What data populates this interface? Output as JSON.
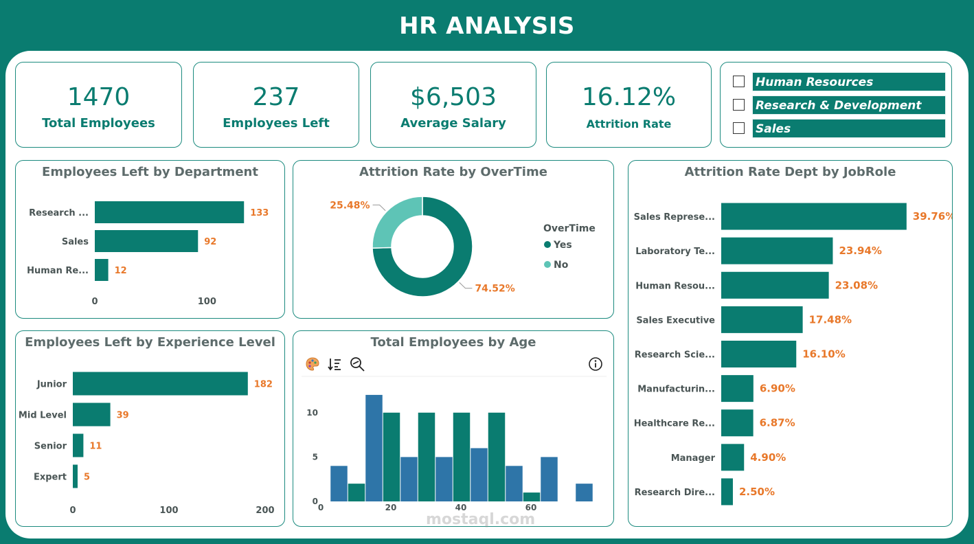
{
  "header": {
    "title": "HR ANALYSIS"
  },
  "kpis": [
    {
      "value": "1470",
      "label": "Total Employees"
    },
    {
      "value": "237",
      "label": "Employees Left"
    },
    {
      "value": "$6,503",
      "label": "Average Salary"
    },
    {
      "value": "16.12%",
      "label": "Attrition Rate"
    }
  ],
  "slicer": {
    "items": [
      "Human Resources",
      "Research & Development",
      "Sales"
    ]
  },
  "colors": {
    "primary": "#0a7c70",
    "secondary": "#5ec4b6",
    "blue": "#2e75a8",
    "label": "#e8782a",
    "text": "#4a5555"
  },
  "toolbar": {
    "icons": [
      "palette-icon",
      "sort-icon",
      "zoom-icon",
      "info-icon"
    ]
  },
  "watermark": "mostaql.com",
  "chart_data": [
    {
      "type": "bar",
      "orientation": "horizontal",
      "title": "Employees Left by Department",
      "categories": [
        "Research ...",
        "Sales",
        "Human Re..."
      ],
      "values": [
        133,
        92,
        12
      ],
      "value_labels": [
        "133",
        "92",
        "12"
      ],
      "xticks": [
        "0",
        "100"
      ],
      "xlim": [
        0,
        150
      ]
    },
    {
      "type": "pie",
      "donut": true,
      "title": "Attrition Rate by OverTime",
      "legend_title": "OverTime",
      "labels": [
        "Yes",
        "No"
      ],
      "values": [
        74.52,
        25.48
      ],
      "value_labels": [
        "74.52%",
        "25.48%"
      ],
      "legend": "right"
    },
    {
      "type": "bar",
      "orientation": "horizontal",
      "title": "Attrition Rate Dept by JobRole",
      "categories": [
        "Sales Represe...",
        "Laboratory Te...",
        "Human Resou...",
        "Sales Executive",
        "Research Scie...",
        "Manufacturin...",
        "Healthcare Re...",
        "Manager",
        "Research Dire..."
      ],
      "values": [
        39.76,
        23.94,
        23.08,
        17.48,
        16.1,
        6.9,
        6.87,
        4.9,
        2.5
      ],
      "value_labels": [
        "39.76%",
        "23.94%",
        "23.08%",
        "17.48%",
        "16.10%",
        "6.90%",
        "6.87%",
        "4.90%",
        "2.50%"
      ],
      "xlim": [
        0,
        42
      ]
    },
    {
      "type": "bar",
      "orientation": "horizontal",
      "title": "Employees Left by Experience Level",
      "categories": [
        "Junior",
        "Mid Level",
        "Senior",
        "Expert"
      ],
      "values": [
        182,
        39,
        11,
        5
      ],
      "value_labels": [
        "182",
        "39",
        "11",
        "5"
      ],
      "xticks": [
        "0",
        "100",
        "200"
      ],
      "xlim": [
        0,
        200
      ]
    },
    {
      "type": "bar",
      "title": "Total Employees by Age",
      "x": [
        5,
        10,
        15,
        20,
        25,
        30,
        35,
        40,
        45,
        50,
        55,
        60,
        65,
        70,
        75
      ],
      "values": [
        4,
        2,
        12,
        10,
        5,
        10,
        5,
        10,
        6,
        10,
        4,
        1,
        5,
        0,
        2
      ],
      "bar_colors": [
        "blue",
        "green",
        "blue",
        "green",
        "blue",
        "green",
        "blue",
        "green",
        "blue",
        "green",
        "blue",
        "green",
        "blue",
        "green",
        "blue"
      ],
      "xticks": [
        "0",
        "20",
        "40",
        "60"
      ],
      "yticks": [
        "0",
        "5",
        "10"
      ],
      "xlim": [
        0,
        80
      ],
      "ylim": [
        0,
        13
      ]
    }
  ]
}
